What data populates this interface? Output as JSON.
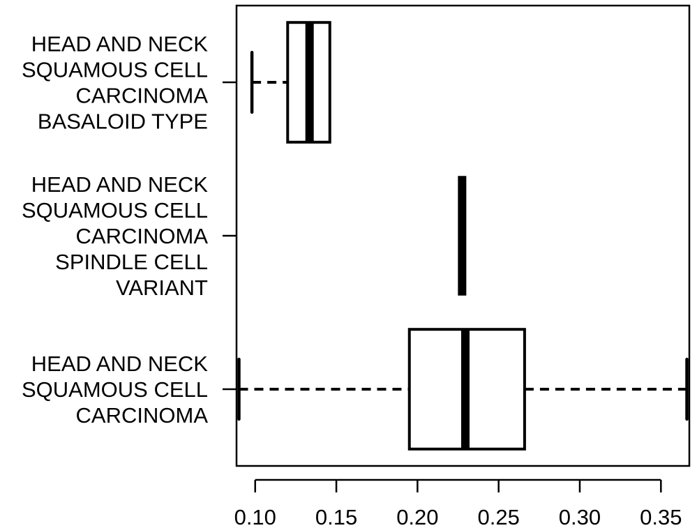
{
  "chart_data": {
    "type": "boxplot",
    "orientation": "horizontal",
    "title": "",
    "xlabel": "",
    "ylabel": "",
    "xlim": [
      0.0885,
      0.3675
    ],
    "x_ticks": [
      "0.10",
      "0.15",
      "0.20",
      "0.25",
      "0.30",
      "0.35"
    ],
    "x_tick_values": [
      0.1,
      0.15,
      0.2,
      0.25,
      0.3,
      0.35
    ],
    "grid": false,
    "legend": "none",
    "categories": [
      {
        "label_lines": [
          "HEAD AND NECK",
          "SQUAMOUS CELL",
          "CARCINOMA",
          "BASALOID TYPE"
        ],
        "min": 0.098,
        "q1": 0.12,
        "median": 0.1335,
        "q3": 0.146,
        "max": 0.146
      },
      {
        "label_lines": [
          "HEAD AND NECK",
          "SQUAMOUS CELL",
          "CARCINOMA",
          "SPINDLE CELL",
          "VARIANT"
        ],
        "min": 0.2275,
        "q1": 0.2275,
        "median": 0.2275,
        "q3": 0.2275,
        "max": 0.2275
      },
      {
        "label_lines": [
          "HEAD AND NECK",
          "SQUAMOUS CELL",
          "CARCINOMA"
        ],
        "min": 0.09,
        "q1": 0.195,
        "median": 0.2295,
        "q3": 0.266,
        "max": 0.366
      }
    ],
    "colors": {
      "stroke": "#000000",
      "box_fill": "#ffffff"
    }
  }
}
